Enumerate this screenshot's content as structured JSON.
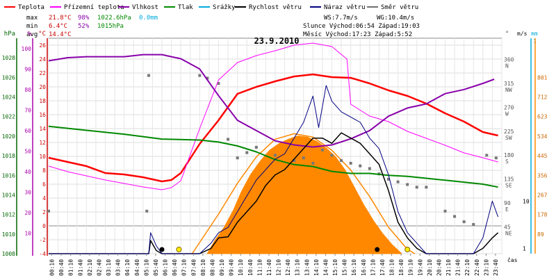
{
  "legend": [
    {
      "label": "Teplota",
      "color": "#ff0000"
    },
    {
      "label": "Přízemní teplota",
      "color": "#ff00ff"
    },
    {
      "label": "Vlhkost",
      "color": "#8800aa"
    },
    {
      "label": "Tlak",
      "color": "#008800"
    },
    {
      "label": "Srážky",
      "color": "#00aadd"
    },
    {
      "label": "Rychlost větru",
      "color": "#000000"
    },
    {
      "label": "Náraz větru",
      "color": "#000080"
    },
    {
      "label": "Směr větru",
      "color": "#707070"
    }
  ],
  "stats": {
    "max_label": "max",
    "max_temp": "21.8°C",
    "max_hum": "98%",
    "max_press": "1022.6hPa",
    "rain": "0.0mm",
    "min_label": "min",
    "min_temp": "6.4°C",
    "min_hum": "52%",
    "min_press": "1015hPa",
    "avg_label": "avg",
    "avg_temp": "14.4°C",
    "ws": "WS:7.7m/s",
    "wg": "WG:10.4m/s",
    "sun": "Slunce Východ:06:54  Západ:19:03",
    "moon": "Měsíc  Východ:17:23  Západ:5:52"
  },
  "chart_data": {
    "type": "line",
    "title": "23.9.2010",
    "x_unit_label": "čas",
    "x_ticks": [
      "00:10",
      "00:40",
      "01:10",
      "01:40",
      "02:10",
      "02:40",
      "03:10",
      "03:40",
      "04:10",
      "04:40",
      "05:10",
      "05:40",
      "06:10",
      "06:40",
      "07:10",
      "07:40",
      "08:10",
      "08:40",
      "09:10",
      "09:40",
      "10:10",
      "10:40",
      "11:10",
      "11:40",
      "12:10",
      "12:40",
      "13:10",
      "13:40",
      "14:10",
      "14:40",
      "15:10",
      "15:40",
      "16:10",
      "16:40",
      "17:10",
      "17:40",
      "18:10",
      "18:40",
      "19:10",
      "19:40",
      "20:10",
      "20:40",
      "21:10",
      "21:40",
      "22:10",
      "22:40",
      "23:10",
      "23:40"
    ],
    "axes": {
      "hpa": {
        "label": "hPa",
        "ticks": [
          "1008",
          "1010",
          "1012",
          "1014",
          "1016",
          "1018",
          "1020",
          "1022",
          "1024",
          "1026",
          "1028"
        ],
        "range": [
          1008,
          1030
        ]
      },
      "pct": {
        "label": "%",
        "ticks": [
          "10",
          "20",
          "30",
          "40",
          "50",
          "60",
          "70",
          "80",
          "90",
          "100"
        ],
        "range": [
          0,
          105
        ]
      },
      "temp": {
        "label": "°C",
        "ticks": [
          "-4",
          "-2",
          "0",
          "2",
          "4",
          "6",
          "8",
          "10",
          "12",
          "14",
          "16",
          "18",
          "20",
          "22",
          "24",
          "26"
        ],
        "range": [
          -4,
          27
        ]
      },
      "dir": {
        "label": "°",
        "ticks": [
          "45 NE",
          "90 E",
          "135 SE",
          "180 S",
          "225 SW",
          "270 W",
          "315 NW",
          "360 N"
        ],
        "range": [
          0,
          405
        ]
      },
      "wind": {
        "label": "m/s",
        "ticks": [
          "1",
          "10"
        ],
        "range": [
          0,
          41
        ]
      },
      "rain": {
        "label": "mm",
        "ticks": [
          "1"
        ]
      },
      "solar": {
        "ticks": [
          "89",
          "178",
          "267",
          "356",
          "445",
          "534",
          "623",
          "712",
          "801"
        ],
        "range": [
          0,
          979
        ]
      }
    },
    "series": [
      {
        "name": "Teplota",
        "axis": "temp",
        "points": [
          [
            0,
            9.8
          ],
          [
            1,
            9.2
          ],
          [
            2,
            8.6
          ],
          [
            3,
            7.6
          ],
          [
            4,
            7.4
          ],
          [
            5,
            7.0
          ],
          [
            6,
            6.4
          ],
          [
            6.5,
            6.6
          ],
          [
            7,
            7.6
          ],
          [
            8,
            11.8
          ],
          [
            9,
            15.2
          ],
          [
            10,
            19.0
          ],
          [
            11,
            20.0
          ],
          [
            12,
            20.8
          ],
          [
            13,
            21.5
          ],
          [
            14,
            21.8
          ],
          [
            15,
            21.4
          ],
          [
            16,
            21.3
          ],
          [
            17,
            20.5
          ],
          [
            18,
            19.5
          ],
          [
            19,
            18.7
          ],
          [
            20,
            17.6
          ],
          [
            21,
            16.2
          ],
          [
            22,
            15.0
          ],
          [
            23,
            13.5
          ],
          [
            23.8,
            13.0
          ]
        ]
      },
      {
        "name": "Přízemní teplota",
        "axis": "temp",
        "points": [
          [
            0,
            8.6
          ],
          [
            1,
            7.8
          ],
          [
            2,
            7.2
          ],
          [
            3,
            6.6
          ],
          [
            4,
            6.1
          ],
          [
            5,
            5.6
          ],
          [
            6,
            5.2
          ],
          [
            6.5,
            5.5
          ],
          [
            7,
            6.5
          ],
          [
            8,
            14.0
          ],
          [
            9,
            21.0
          ],
          [
            10,
            23.5
          ],
          [
            11,
            24.5
          ],
          [
            12,
            25.2
          ],
          [
            13,
            26.0
          ],
          [
            14,
            26.3
          ],
          [
            15,
            25.8
          ],
          [
            15.8,
            24.0
          ],
          [
            16,
            17.5
          ],
          [
            17,
            15.8
          ],
          [
            18,
            15.0
          ],
          [
            19,
            13.6
          ],
          [
            20,
            12.6
          ],
          [
            21,
            11.6
          ],
          [
            22,
            10.5
          ],
          [
            23,
            9.8
          ],
          [
            23.8,
            9.2
          ]
        ]
      },
      {
        "name": "Vlhkost",
        "axis": "pct",
        "points": [
          [
            0,
            94
          ],
          [
            1,
            95.5
          ],
          [
            2,
            96
          ],
          [
            3,
            96
          ],
          [
            4,
            96
          ],
          [
            5,
            97
          ],
          [
            6,
            97
          ],
          [
            6.5,
            96
          ],
          [
            7,
            95
          ],
          [
            8,
            90
          ],
          [
            9,
            77
          ],
          [
            10,
            65
          ],
          [
            11,
            60
          ],
          [
            12,
            55
          ],
          [
            13,
            53
          ],
          [
            14,
            52
          ],
          [
            15,
            53
          ],
          [
            16,
            56
          ],
          [
            17,
            60
          ],
          [
            18,
            67
          ],
          [
            19,
            71
          ],
          [
            20,
            73
          ],
          [
            21,
            78
          ],
          [
            22,
            80
          ],
          [
            23,
            83
          ],
          [
            23.6,
            85
          ]
        ]
      },
      {
        "name": "Tlak",
        "axis": "hpa",
        "points": [
          [
            0,
            1021.0
          ],
          [
            2,
            1020.6
          ],
          [
            4,
            1020.2
          ],
          [
            6,
            1019.7
          ],
          [
            8,
            1019.6
          ],
          [
            9,
            1019.4
          ],
          [
            10,
            1019.0
          ],
          [
            11,
            1018.4
          ],
          [
            12,
            1017.6
          ],
          [
            13,
            1017.1
          ],
          [
            14,
            1016.9
          ],
          [
            15,
            1016.4
          ],
          [
            16,
            1016.2
          ],
          [
            17,
            1016.2
          ],
          [
            18,
            1016.0
          ],
          [
            19,
            1015.9
          ],
          [
            20,
            1015.7
          ],
          [
            21,
            1015.5
          ],
          [
            22,
            1015.3
          ],
          [
            23,
            1015.1
          ],
          [
            23.8,
            1014.8
          ]
        ]
      },
      {
        "name": "Rychlost větru",
        "axis": "wind",
        "points": [
          [
            0,
            0
          ],
          [
            5.3,
            0
          ],
          [
            5.4,
            2.5
          ],
          [
            5.7,
            0.6
          ],
          [
            6,
            0
          ],
          [
            8,
            0
          ],
          [
            8.6,
            1
          ],
          [
            9,
            3
          ],
          [
            9.5,
            3.2
          ],
          [
            10,
            6
          ],
          [
            10.5,
            8
          ],
          [
            11,
            10
          ],
          [
            11.5,
            13
          ],
          [
            12,
            15
          ],
          [
            12.5,
            16
          ],
          [
            13,
            18
          ],
          [
            13.5,
            20
          ],
          [
            14,
            22
          ],
          [
            14.5,
            22
          ],
          [
            15,
            21
          ],
          [
            15.5,
            23
          ],
          [
            16,
            22
          ],
          [
            16.5,
            21
          ],
          [
            17,
            19
          ],
          [
            17.5,
            17
          ],
          [
            18,
            12
          ],
          [
            18.5,
            6
          ],
          [
            19,
            3
          ],
          [
            19.5,
            1
          ],
          [
            20,
            0
          ],
          [
            22.5,
            0
          ],
          [
            23,
            1
          ],
          [
            23.5,
            3
          ],
          [
            23.8,
            4
          ]
        ]
      },
      {
        "name": "Náraz větru",
        "axis": "wind",
        "points": [
          [
            0,
            0
          ],
          [
            5.3,
            0
          ],
          [
            5.4,
            4
          ],
          [
            5.7,
            1.5
          ],
          [
            6,
            0
          ],
          [
            8,
            0
          ],
          [
            8.6,
            2
          ],
          [
            9,
            4
          ],
          [
            9.5,
            5
          ],
          [
            10,
            8
          ],
          [
            10.5,
            11
          ],
          [
            11,
            14
          ],
          [
            11.5,
            16
          ],
          [
            12,
            18
          ],
          [
            12.5,
            19
          ],
          [
            13,
            22
          ],
          [
            13.5,
            25
          ],
          [
            14,
            30
          ],
          [
            14.3,
            24
          ],
          [
            14.7,
            32
          ],
          [
            15,
            29
          ],
          [
            15.5,
            27
          ],
          [
            16,
            26
          ],
          [
            16.5,
            25
          ],
          [
            17,
            22
          ],
          [
            17.5,
            20
          ],
          [
            18,
            15
          ],
          [
            18.5,
            8
          ],
          [
            19,
            4
          ],
          [
            19.5,
            2
          ],
          [
            20,
            0
          ],
          [
            22.5,
            0
          ],
          [
            23,
            3
          ],
          [
            23.5,
            10
          ],
          [
            23.8,
            7
          ]
        ]
      }
    ],
    "wind_direction_series": {
      "name": "Směr větru",
      "axis": "dir",
      "points": [
        [
          0,
          80
        ],
        [
          5.2,
          80
        ],
        [
          5.3,
          335
        ],
        [
          8,
          335
        ],
        [
          8.4,
          330
        ],
        [
          9,
          320
        ],
        [
          9.5,
          215
        ],
        [
          10,
          180
        ],
        [
          10.5,
          190
        ],
        [
          11,
          200
        ],
        [
          12,
          185
        ],
        [
          13,
          175
        ],
        [
          13.5,
          180
        ],
        [
          14,
          170
        ],
        [
          14.5,
          195
        ],
        [
          15,
          185
        ],
        [
          15.5,
          175
        ],
        [
          16,
          170
        ],
        [
          16.5,
          165
        ],
        [
          17,
          160
        ],
        [
          17.5,
          150
        ],
        [
          18,
          140
        ],
        [
          18.5,
          135
        ],
        [
          19,
          130
        ],
        [
          19.5,
          125
        ],
        [
          20,
          125
        ],
        [
          21,
          80
        ],
        [
          21.5,
          70
        ],
        [
          22,
          60
        ],
        [
          22.5,
          55
        ],
        [
          23.2,
          185
        ],
        [
          23.7,
          180
        ]
      ]
    },
    "solar_radiation": {
      "axis": "solar",
      "points": [
        [
          8.4,
          0
        ],
        [
          8.8,
          60
        ],
        [
          9.3,
          120
        ],
        [
          9.8,
          200
        ],
        [
          10.2,
          280
        ],
        [
          10.7,
          360
        ],
        [
          11.2,
          420
        ],
        [
          11.7,
          470
        ],
        [
          12.2,
          500
        ],
        [
          12.7,
          520
        ],
        [
          13.2,
          535
        ],
        [
          13.7,
          530
        ],
        [
          14.2,
          510
        ],
        [
          14.7,
          480
        ],
        [
          15.2,
          440
        ],
        [
          15.7,
          380
        ],
        [
          16.2,
          300
        ],
        [
          16.7,
          220
        ],
        [
          17.2,
          150
        ],
        [
          17.7,
          90
        ],
        [
          18.2,
          40
        ],
        [
          18.7,
          0
        ]
      ]
    },
    "solar_theoretical": {
      "axis": "solar",
      "points": [
        [
          7.6,
          0
        ],
        [
          9,
          180
        ],
        [
          10,
          320
        ],
        [
          11,
          440
        ],
        [
          12,
          520
        ],
        [
          13,
          545
        ],
        [
          14,
          530
        ],
        [
          15,
          470
        ],
        [
          16,
          380
        ],
        [
          17,
          260
        ],
        [
          18,
          120
        ],
        [
          19,
          20
        ],
        [
          19.4,
          0
        ]
      ]
    },
    "events": [
      {
        "time": 6.0,
        "kind": "sunrise-marker"
      },
      {
        "time": 6.9,
        "kind": "sunrise"
      },
      {
        "time": 17.4,
        "kind": "moonrise"
      },
      {
        "time": 19.0,
        "kind": "sunset"
      }
    ]
  }
}
